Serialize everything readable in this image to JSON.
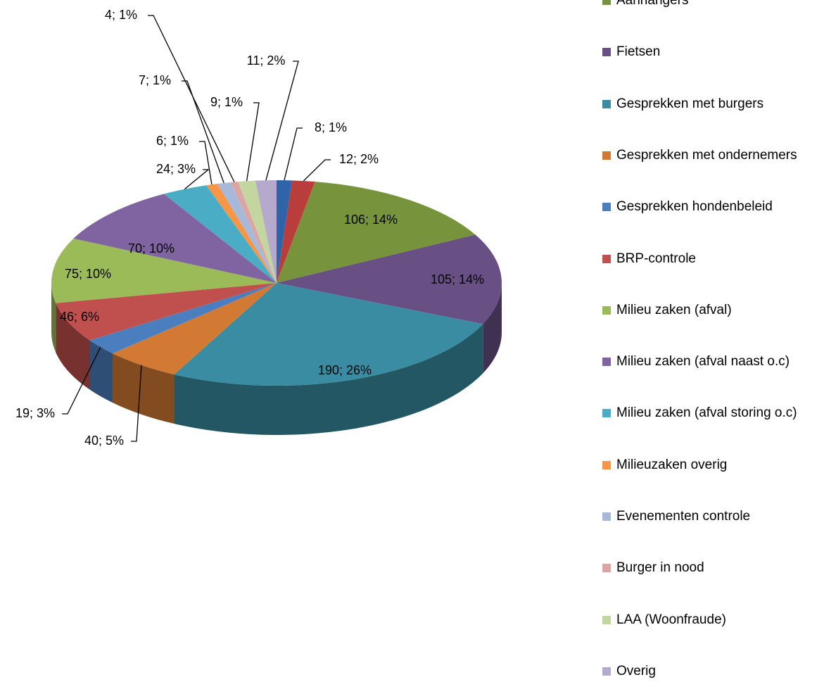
{
  "chart_data": {
    "type": "pie",
    "categories": [
      null,
      null,
      "Aanhangers",
      "Fietsen",
      "Gesprekken met burgers",
      "Gesprekken met ondernemers",
      "Gesprekken hondenbeleid",
      "BRP-controle",
      "Milieu zaken (afval)",
      "Milieu zaken (afval naast o.c)",
      "Milieu zaken (afval storing o.c)",
      "Milieuzaken overig",
      "Evenementen controle",
      "Burger in nood",
      "LAA (Woonfraude)",
      "Overig"
    ],
    "values": [
      8,
      12,
      106,
      105,
      190,
      40,
      19,
      46,
      75,
      70,
      24,
      6,
      7,
      4,
      9,
      11
    ],
    "value_labels": [
      "8; 1%",
      "12; 2%",
      "106; 14%",
      "105; 14%",
      "190; 26%",
      "40; 5%",
      "19; 3%",
      "46; 6%",
      "75; 10%",
      "70; 10%",
      "24; 3%",
      "6; 1%",
      "7; 1%",
      "4; 1%",
      "9; 1%",
      "11; 2%"
    ],
    "colors": [
      "#2f64a8",
      "#b93d3a",
      "#77933c",
      "#684f84",
      "#3a8ca2",
      "#d27a33",
      "#4a7ebf",
      "#c0504d",
      "#9bbb59",
      "#8064a2",
      "#4bacc6",
      "#f79646",
      "#a7b9d9",
      "#dba5a4",
      "#c4d6a0",
      "#b5a9cd"
    ],
    "legend": "right"
  }
}
